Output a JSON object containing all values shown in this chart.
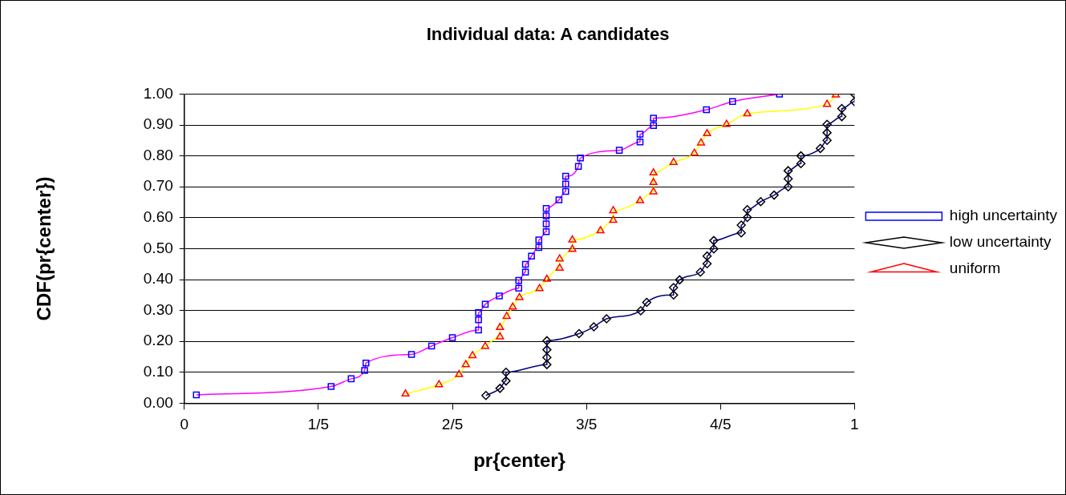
{
  "chart_data": {
    "type": "line",
    "title": "Individual data: A candidates",
    "xlabel": "pr{center}",
    "ylabel": "CDF(pr{center})",
    "xlim": [
      0,
      1
    ],
    "xticks": [
      0,
      {
        "value": 0.2,
        "label": "1/5"
      },
      {
        "value": 0.4,
        "label": "2/5"
      },
      {
        "value": 0.6,
        "label": "3/5"
      },
      {
        "value": 0.8,
        "label": "4/5"
      },
      1
    ],
    "ylim": [
      0,
      1
    ],
    "yticks": [
      {
        "value": 0,
        "label": "0.00"
      },
      {
        "value": 0.1,
        "label": "0.10"
      },
      {
        "value": 0.2,
        "label": "0.20"
      },
      {
        "value": 0.3,
        "label": "0.30"
      },
      {
        "value": 0.4,
        "label": "0.40"
      },
      {
        "value": 0.5,
        "label": "0.50"
      },
      {
        "value": 0.6,
        "label": "0.60"
      },
      {
        "value": 0.7,
        "label": "0.70"
      },
      {
        "value": 0.8,
        "label": "0.80"
      },
      {
        "value": 0.9,
        "label": "0.90"
      },
      {
        "value": 1,
        "label": "1.00"
      }
    ],
    "grid": "y",
    "legend": "right",
    "line_style": "solid",
    "series": [
      {
        "name": "high uncertainty",
        "color": "#ff00ff",
        "marker": "square",
        "colors": [
          "#0000ff",
          "#0000ff",
          "#0000ff",
          "#0000ff",
          "#0000ff",
          "#0000ff",
          "#0000ff",
          "#0000ff",
          "#0000ff",
          "#0000ff",
          "#0000ff",
          "#0000ff",
          "#0000ff",
          "#0000ff",
          "#0000ff",
          "#0000ff",
          "#0000ff",
          "#0000ff",
          "#0000ff",
          "#0000ff",
          "#0000ff",
          "#0000ff",
          "#0000ff",
          "#0000ff",
          "#0000ff",
          "#0000ff",
          "#0000ff",
          "#0000ff",
          "#0000ff",
          "#0000ff",
          "#0000ff",
          "#0000ff",
          "#0000ff",
          "#0000ff",
          "#0000ff",
          "#0000ff",
          "#0000ff",
          "#0000ff"
        ],
        "x": [
          0.018,
          0.219,
          0.249,
          0.269,
          0.271,
          0.339,
          0.369,
          0.4,
          0.439,
          0.439,
          0.439,
          0.449,
          0.47,
          0.499,
          0.499,
          0.509,
          0.509,
          0.518,
          0.529,
          0.529,
          0.54,
          0.54,
          0.54,
          0.54,
          0.559,
          0.569,
          0.569,
          0.569,
          0.588,
          0.591,
          0.649,
          0.68,
          0.68,
          0.7,
          0.7,
          0.779,
          0.818,
          0.888
        ],
        "values": [
          0.027,
          0.054,
          0.079,
          0.106,
          0.13,
          0.158,
          0.185,
          0.212,
          0.237,
          0.27,
          0.293,
          0.32,
          0.347,
          0.372,
          0.397,
          0.424,
          0.449,
          0.476,
          0.504,
          0.528,
          0.555,
          0.58,
          0.606,
          0.63,
          0.658,
          0.685,
          0.709,
          0.734,
          0.766,
          0.793,
          0.818,
          0.845,
          0.87,
          0.898,
          0.922,
          0.949,
          0.976,
          1.0
        ]
      },
      {
        "name": "low uncertainty",
        "color": "#000080",
        "marker": "diamond",
        "colors": [
          "#000000",
          "#000000",
          "#000000",
          "#000000",
          "#000000",
          "#000000",
          "#000000",
          "#000000",
          "#000000",
          "#000000",
          "#000000",
          "#000000",
          "#000000",
          "#000000",
          "#000000",
          "#000000",
          "#000000",
          "#000000",
          "#000000",
          "#000000",
          "#000000",
          "#000000",
          "#000000",
          "#000000",
          "#000000",
          "#000000",
          "#000000",
          "#000000",
          "#000000",
          "#000000",
          "#000000",
          "#000000",
          "#000000",
          "#000000",
          "#000000",
          "#000000",
          "#000000",
          "#000000",
          "#000000",
          "#000000"
        ],
        "x": [
          0.45,
          0.471,
          0.48,
          0.48,
          0.541,
          0.541,
          0.541,
          0.541,
          0.589,
          0.611,
          0.63,
          0.681,
          0.69,
          0.73,
          0.73,
          0.739,
          0.77,
          0.78,
          0.78,
          0.79,
          0.79,
          0.831,
          0.831,
          0.84,
          0.84,
          0.86,
          0.88,
          0.901,
          0.901,
          0.901,
          0.92,
          0.92,
          0.949,
          0.959,
          0.959,
          0.959,
          0.981,
          0.981,
          1.0,
          1.0
        ],
        "values": [
          0.025,
          0.048,
          0.072,
          0.1,
          0.125,
          0.148,
          0.173,
          0.202,
          0.225,
          0.247,
          0.273,
          0.299,
          0.326,
          0.35,
          0.374,
          0.399,
          0.424,
          0.451,
          0.476,
          0.499,
          0.526,
          0.551,
          0.576,
          0.601,
          0.626,
          0.652,
          0.673,
          0.7,
          0.726,
          0.752,
          0.775,
          0.8,
          0.824,
          0.85,
          0.875,
          0.902,
          0.927,
          0.953,
          0.975,
          1.0
        ]
      },
      {
        "name": "uniform",
        "color": "#ffff00",
        "marker": "triangle",
        "colors": [
          "#ff0000",
          "#ff0000",
          "#ff0000",
          "#ff0000",
          "#ff0000",
          "#ff0000",
          "#ff0000",
          "#ff0000",
          "#ff0000",
          "#ff0000",
          "#ff0000",
          "#ff0000",
          "#ff0000",
          "#ff0000",
          "#ff0000",
          "#ff0000",
          "#ff0000",
          "#ff0000",
          "#ff0000",
          "#ff0000",
          "#ff0000",
          "#ff0000",
          "#ff0000",
          "#ff0000",
          "#ff0000",
          "#ff0000",
          "#ff0000",
          "#ff0000",
          "#ff0000",
          "#ff0000",
          "#ff0000",
          "#ff0000"
        ],
        "x": [
          0.33,
          0.38,
          0.41,
          0.42,
          0.43,
          0.449,
          0.471,
          0.471,
          0.481,
          0.49,
          0.5,
          0.53,
          0.541,
          0.56,
          0.56,
          0.579,
          0.579,
          0.621,
          0.64,
          0.64,
          0.68,
          0.7,
          0.7,
          0.7,
          0.73,
          0.761,
          0.771,
          0.78,
          0.809,
          0.84,
          0.959,
          0.972
        ],
        "values": [
          0.03,
          0.06,
          0.093,
          0.125,
          0.154,
          0.184,
          0.215,
          0.245,
          0.281,
          0.311,
          0.342,
          0.371,
          0.401,
          0.437,
          0.467,
          0.498,
          0.528,
          0.558,
          0.592,
          0.623,
          0.655,
          0.684,
          0.714,
          0.745,
          0.779,
          0.809,
          0.842,
          0.872,
          0.902,
          0.936,
          0.967,
          0.997
        ]
      }
    ]
  }
}
